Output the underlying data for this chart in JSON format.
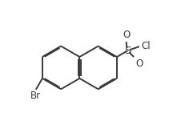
{
  "background_color": "#ffffff",
  "bond_color": "#3a3a3a",
  "atom_color": "#3a3a3a",
  "bond_width": 1.4,
  "figsize": [
    2.21,
    1.71
  ],
  "dpi": 100,
  "label_Br": "Br",
  "label_S": "S",
  "label_O": "O",
  "label_Cl": "Cl",
  "font_size": 8.5,
  "s_font_size": 9.5,
  "inner_off": 0.055,
  "inner_shrink": 0.12
}
